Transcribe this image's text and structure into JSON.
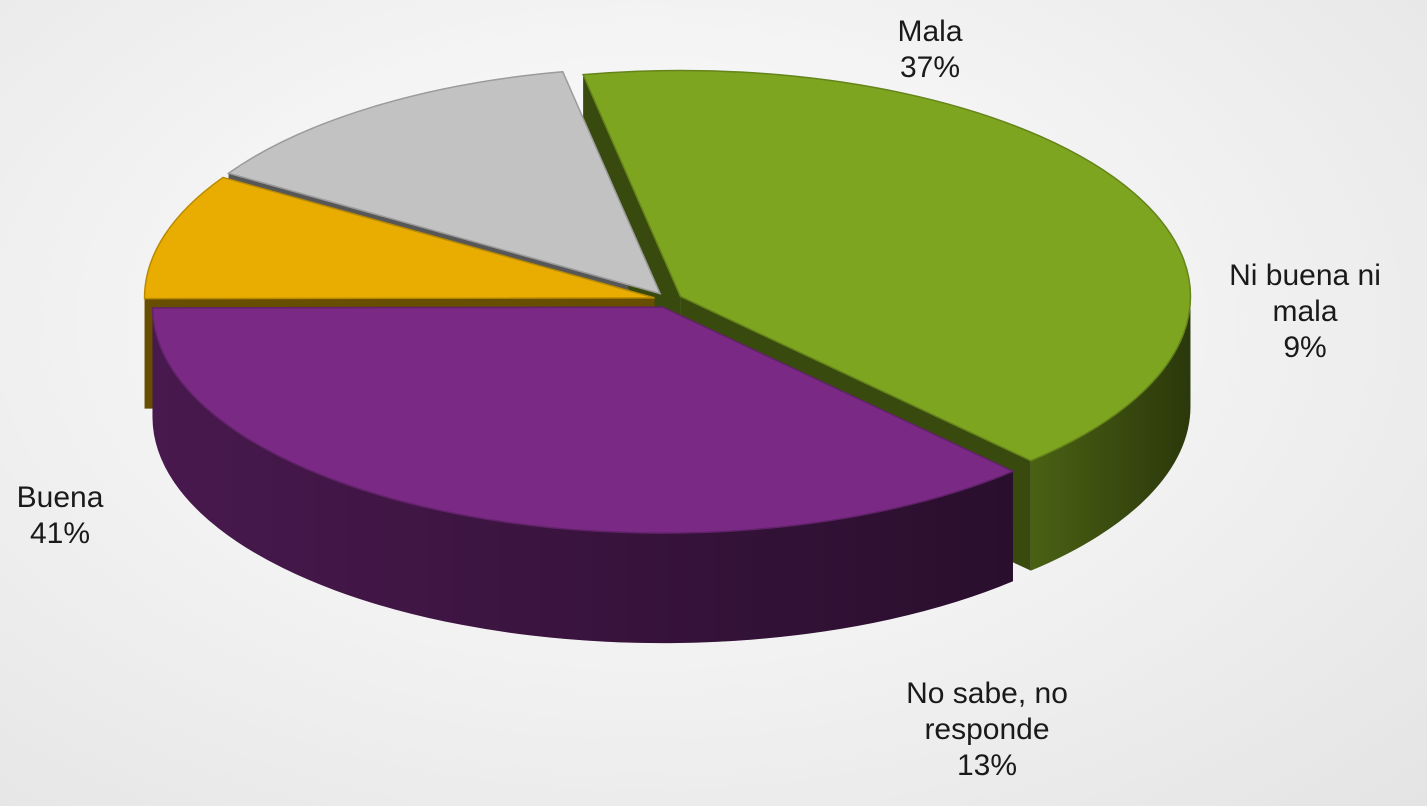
{
  "chart_data": {
    "type": "pie",
    "title": "",
    "style": "3d-exploded",
    "slices": [
      {
        "label": "Buena",
        "label_lines": [
          "Buena"
        ],
        "value": 41,
        "value_label": "41%",
        "color": "#7ea520"
      },
      {
        "label": "Mala",
        "label_lines": [
          "Mala"
        ],
        "value": 37,
        "value_label": "37%",
        "color": "#7a2a85"
      },
      {
        "label": "Ni buena ni mala",
        "label_lines": [
          "Ni buena ni",
          "mala"
        ],
        "value": 9,
        "value_label": "9%",
        "color": "#e8ad00"
      },
      {
        "label": "No sabe, no responde",
        "label_lines": [
          "No sabe, no",
          "responde"
        ],
        "value": 13,
        "value_label": "13%",
        "color": "#c2c2c2"
      }
    ]
  }
}
